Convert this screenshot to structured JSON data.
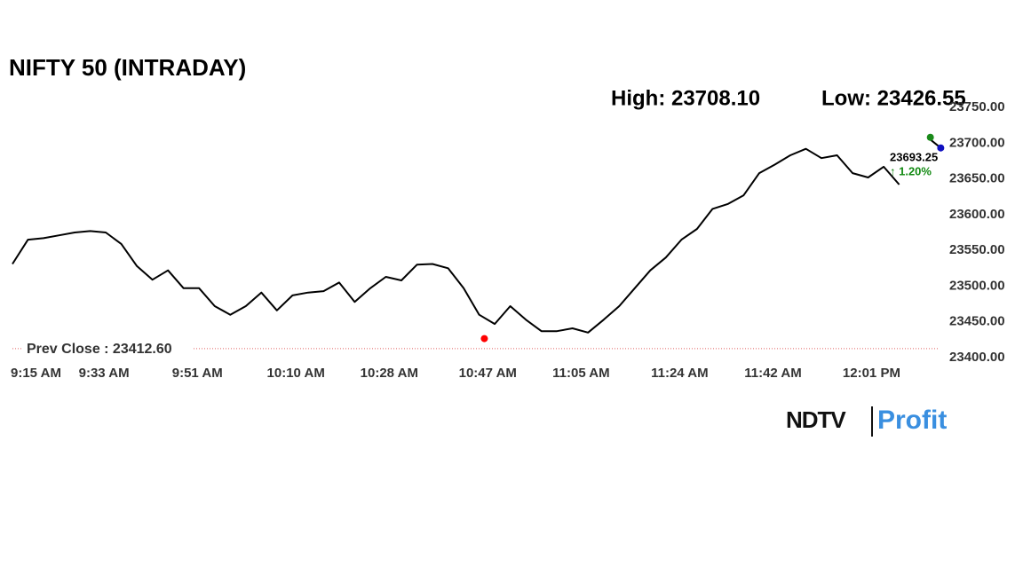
{
  "chart_data": {
    "type": "line",
    "title": "NIFTY 50 (INTRADAY)",
    "x": [
      "9:15 AM",
      "9:18 AM",
      "9:21 AM",
      "9:24 AM",
      "9:27 AM",
      "9:30 AM",
      "9:33 AM",
      "9:36 AM",
      "9:39 AM",
      "9:42 AM",
      "9:45 AM",
      "9:48 AM",
      "9:51 AM",
      "9:54 AM",
      "9:57 AM",
      "10:00 AM",
      "10:03 AM",
      "10:06 AM",
      "10:09 AM",
      "10:12 AM",
      "10:15 AM",
      "10:18 AM",
      "10:21 AM",
      "10:24 AM",
      "10:27 AM",
      "10:30 AM",
      "10:33 AM",
      "10:36 AM",
      "10:39 AM",
      "10:42 AM",
      "10:45 AM",
      "10:48 AM",
      "10:51 AM",
      "10:54 AM",
      "10:57 AM",
      "11:00 AM",
      "11:03 AM",
      "11:06 AM",
      "11:09 AM",
      "11:12 AM",
      "11:15 AM",
      "11:18 AM",
      "11:21 AM",
      "11:24 AM",
      "11:27 AM",
      "11:30 AM",
      "11:33 AM",
      "11:36 AM",
      "11:39 AM",
      "11:42 AM",
      "11:45 AM",
      "11:48 AM",
      "11:51 AM",
      "11:54 AM",
      "11:57 AM",
      "12:00 PM",
      "12:03 PM",
      "12:06 PM",
      "12:09 PM",
      "12:12 PM",
      "12:14 PM"
    ],
    "series": [
      {
        "name": "NIFTY 50",
        "color": "#000000",
        "values": [
          23531,
          23565,
          23567,
          23571,
          23575,
          23577,
          23575,
          23559,
          23528,
          23509,
          23522,
          23497,
          23497,
          23472,
          23460,
          23472,
          23491,
          23466,
          23487,
          23491,
          23493,
          23505,
          23478,
          23497,
          23513,
          23508,
          23530,
          23531,
          23525,
          23497,
          23460,
          23447,
          23472,
          23453,
          23437,
          23437,
          23441,
          23435,
          23453,
          23472,
          23497,
          23522,
          23540,
          23565,
          23580,
          23608,
          23615,
          23627,
          23658,
          23670,
          23683,
          23692,
          23679,
          23683,
          23658,
          23652,
          23667,
          23642,
          null,
          23705,
          23693.25
        ]
      }
    ],
    "xticks": [
      "9:15 AM",
      "9:33 AM",
      "9:51 AM",
      "10:10 AM",
      "10:28 AM",
      "10:47 AM",
      "11:05 AM",
      "11:24 AM",
      "11:42 AM",
      "12:01 PM"
    ],
    "ylim": [
      23400,
      23750
    ],
    "yticks": [
      {
        "value": 23400,
        "label": "23400.00"
      },
      {
        "value": 23450,
        "label": "23450.00"
      },
      {
        "value": 23500,
        "label": "23500.00"
      },
      {
        "value": 23550,
        "label": "23550.00"
      },
      {
        "value": 23600,
        "label": "23600.00"
      },
      {
        "value": 23650,
        "label": "23650.00"
      },
      {
        "value": 23700,
        "label": "23700.00"
      },
      {
        "value": 23750,
        "label": "23750.00"
      }
    ],
    "high": {
      "label": "High: 23708.10",
      "value": 23708.1,
      "x": "12:12 PM",
      "color": "#1a8a1a"
    },
    "low": {
      "label": "Low: 23426.55",
      "value": 23426.55,
      "x": "10:46 AM",
      "color": "#ff0000"
    },
    "prev_close": {
      "label": "Prev Close : 23412.60",
      "value": 23412.6,
      "color": "#e06060"
    },
    "last": {
      "label": "23693.25",
      "value": 23693.25,
      "change_label": "↑ 1.20%",
      "change": 1.2,
      "color": "#1010c0",
      "change_color": "#138a13"
    }
  },
  "logo": {
    "left": "NDTV",
    "right": "Profit"
  }
}
